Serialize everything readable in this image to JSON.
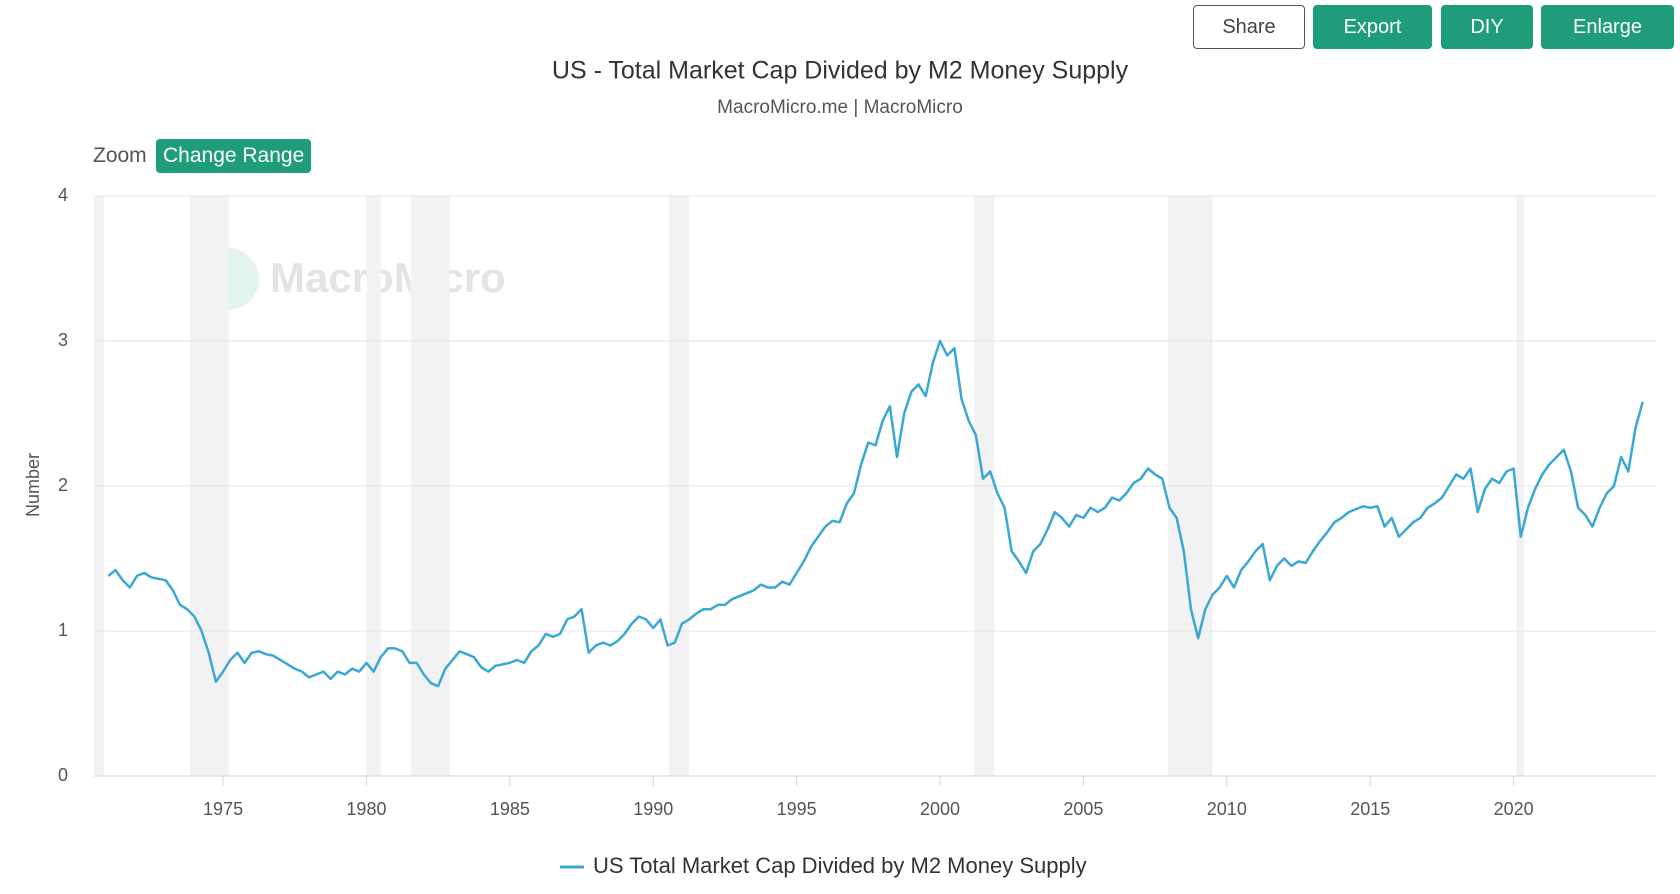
{
  "toolbar": [
    "Share",
    "Export",
    "DIY",
    "Enlarge"
  ],
  "zoom_label": "Zoom",
  "range_button": "Change Range",
  "watermark": "MacroMicro",
  "chart_data": {
    "type": "line",
    "title": "US - Total Market Cap Divided by M2 Money Supply",
    "subtitle": "MacroMicro.me | MacroMicro",
    "y_label": "Number",
    "xlim": [
      1970.5,
      2025
    ],
    "xticks": [
      1975,
      1980,
      1985,
      1990,
      1995,
      2000,
      2005,
      2010,
      2015,
      2020
    ],
    "ylim": [
      0,
      4
    ],
    "yticks": [
      0,
      1,
      2,
      3,
      4
    ],
    "grid": true,
    "recessions": [
      [
        1970.5,
        1970.85
      ],
      [
        1973.85,
        1975.2
      ],
      [
        1980.0,
        1980.5
      ],
      [
        1981.55,
        1982.9
      ],
      [
        1990.55,
        1991.25
      ],
      [
        2001.2,
        2001.9
      ],
      [
        2007.95,
        2009.5
      ],
      [
        2020.1,
        2020.35
      ]
    ],
    "x": [
      1971,
      1971.25,
      1971.5,
      1971.75,
      1972,
      1972.25,
      1972.5,
      1972.75,
      1973,
      1973.25,
      1973.5,
      1973.75,
      1974,
      1974.25,
      1974.5,
      1974.75,
      1975,
      1975.25,
      1975.5,
      1975.75,
      1976,
      1976.25,
      1976.5,
      1976.75,
      1977,
      1977.25,
      1977.5,
      1977.75,
      1978,
      1978.25,
      1978.5,
      1978.75,
      1979,
      1979.25,
      1979.5,
      1979.75,
      1980,
      1980.25,
      1980.5,
      1980.75,
      1981,
      1981.25,
      1981.5,
      1981.75,
      1982,
      1982.25,
      1982.5,
      1982.75,
      1983,
      1983.25,
      1983.5,
      1983.75,
      1984,
      1984.25,
      1984.5,
      1984.75,
      1985,
      1985.25,
      1985.5,
      1985.75,
      1986,
      1986.25,
      1986.5,
      1986.75,
      1987,
      1987.25,
      1987.5,
      1987.75,
      1988,
      1988.25,
      1988.5,
      1988.75,
      1989,
      1989.25,
      1989.5,
      1989.75,
      1990,
      1990.25,
      1990.5,
      1990.75,
      1991,
      1991.25,
      1991.5,
      1991.75,
      1992,
      1992.25,
      1992.5,
      1992.75,
      1993,
      1993.25,
      1993.5,
      1993.75,
      1994,
      1994.25,
      1994.5,
      1994.75,
      1995,
      1995.25,
      1995.5,
      1995.75,
      1996,
      1996.25,
      1996.5,
      1996.75,
      1997,
      1997.25,
      1997.5,
      1997.75,
      1998,
      1998.25,
      1998.5,
      1998.75,
      1999,
      1999.25,
      1999.5,
      1999.75,
      2000,
      2000.25,
      2000.5,
      2000.75,
      2001,
      2001.25,
      2001.5,
      2001.75,
      2002,
      2002.25,
      2002.5,
      2002.75,
      2003,
      2003.25,
      2003.5,
      2003.75,
      2004,
      2004.25,
      2004.5,
      2004.75,
      2005,
      2005.25,
      2005.5,
      2005.75,
      2006,
      2006.25,
      2006.5,
      2006.75,
      2007,
      2007.25,
      2007.5,
      2007.75,
      2008,
      2008.25,
      2008.5,
      2008.75,
      2009,
      2009.25,
      2009.5,
      2009.75,
      2010,
      2010.25,
      2010.5,
      2010.75,
      2011,
      2011.25,
      2011.5,
      2011.75,
      2012,
      2012.25,
      2012.5,
      2012.75,
      2013,
      2013.25,
      2013.5,
      2013.75,
      2014,
      2014.25,
      2014.5,
      2014.75,
      2015,
      2015.25,
      2015.5,
      2015.75,
      2016,
      2016.25,
      2016.5,
      2016.75,
      2017,
      2017.25,
      2017.5,
      2017.75,
      2018,
      2018.25,
      2018.5,
      2018.75,
      2019,
      2019.25,
      2019.5,
      2019.75,
      2020,
      2020.25,
      2020.5,
      2020.75,
      2021,
      2021.25,
      2021.5,
      2021.75,
      2022,
      2022.25,
      2022.5,
      2022.75,
      2023,
      2023.25,
      2023.5,
      2023.75,
      2024,
      2024.25,
      2024.5
    ],
    "series": [
      {
        "name": "US Total Market Cap Divided by M2 Money Supply",
        "color": "#3ba8d3",
        "values": [
          1.38,
          1.42,
          1.35,
          1.3,
          1.38,
          1.4,
          1.37,
          1.36,
          1.35,
          1.28,
          1.18,
          1.15,
          1.1,
          1.0,
          0.85,
          0.65,
          0.72,
          0.8,
          0.85,
          0.78,
          0.85,
          0.86,
          0.84,
          0.83,
          0.8,
          0.77,
          0.74,
          0.72,
          0.68,
          0.7,
          0.72,
          0.67,
          0.72,
          0.7,
          0.74,
          0.72,
          0.78,
          0.72,
          0.82,
          0.88,
          0.88,
          0.86,
          0.78,
          0.78,
          0.7,
          0.64,
          0.62,
          0.74,
          0.8,
          0.86,
          0.84,
          0.82,
          0.75,
          0.72,
          0.76,
          0.77,
          0.78,
          0.8,
          0.78,
          0.86,
          0.9,
          0.98,
          0.96,
          0.98,
          1.08,
          1.1,
          1.15,
          0.85,
          0.9,
          0.92,
          0.9,
          0.93,
          0.98,
          1.05,
          1.1,
          1.08,
          1.02,
          1.08,
          0.9,
          0.92,
          1.05,
          1.08,
          1.12,
          1.15,
          1.15,
          1.18,
          1.18,
          1.22,
          1.24,
          1.26,
          1.28,
          1.32,
          1.3,
          1.3,
          1.34,
          1.32,
          1.4,
          1.48,
          1.58,
          1.65,
          1.72,
          1.76,
          1.75,
          1.88,
          1.95,
          2.15,
          2.3,
          2.28,
          2.45,
          2.55,
          2.2,
          2.5,
          2.65,
          2.7,
          2.62,
          2.85,
          3.0,
          2.9,
          2.95,
          2.6,
          2.45,
          2.35,
          2.05,
          2.1,
          1.95,
          1.85,
          1.55,
          1.48,
          1.4,
          1.55,
          1.6,
          1.7,
          1.82,
          1.78,
          1.72,
          1.8,
          1.78,
          1.85,
          1.82,
          1.85,
          1.92,
          1.9,
          1.95,
          2.02,
          2.05,
          2.12,
          2.08,
          2.05,
          1.85,
          1.78,
          1.55,
          1.15,
          0.95,
          1.15,
          1.25,
          1.3,
          1.38,
          1.3,
          1.42,
          1.48,
          1.55,
          1.6,
          1.35,
          1.45,
          1.5,
          1.45,
          1.48,
          1.47,
          1.55,
          1.62,
          1.68,
          1.75,
          1.78,
          1.82,
          1.84,
          1.86,
          1.85,
          1.86,
          1.72,
          1.78,
          1.65,
          1.7,
          1.75,
          1.78,
          1.85,
          1.88,
          1.92,
          2.0,
          2.08,
          2.05,
          2.12,
          1.82,
          1.98,
          2.05,
          2.02,
          2.1,
          2.12,
          1.65,
          1.85,
          1.98,
          2.08,
          2.15,
          2.2,
          2.25,
          2.1,
          1.85,
          1.8,
          1.72,
          1.85,
          1.95,
          2.0,
          2.2,
          2.1,
          2.4,
          2.58
        ]
      }
    ]
  }
}
